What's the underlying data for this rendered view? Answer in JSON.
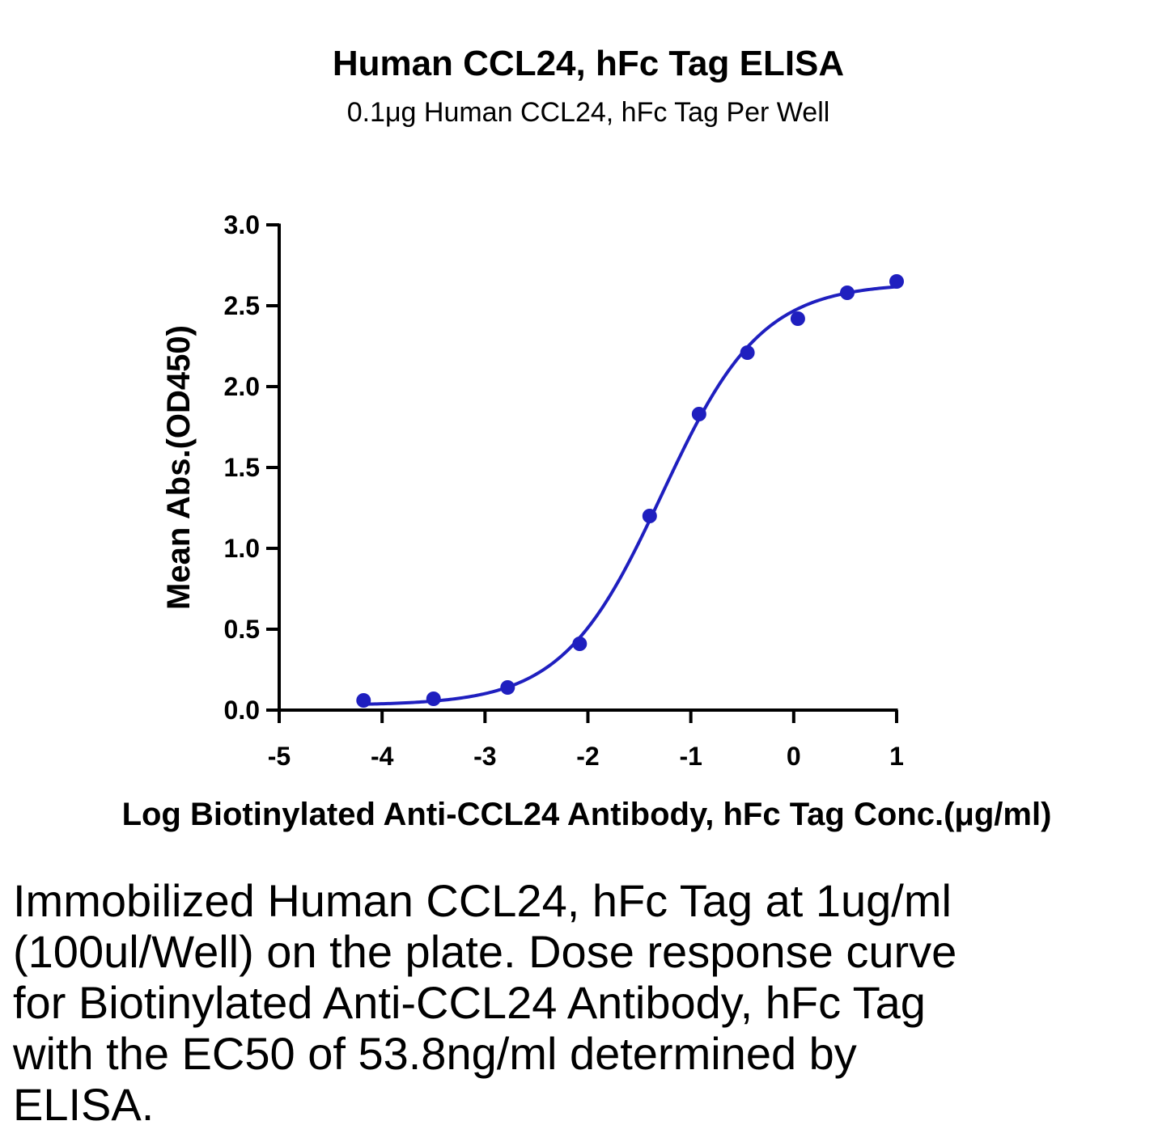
{
  "chart_data": {
    "type": "scatter",
    "title": "Human CCL24, hFc Tag ELISA",
    "subtitle": "0.1μg Human CCL24, hFc Tag Per Well",
    "xlabel": "Log Biotinylated Anti-CCL24 Antibody, hFc Tag Conc.(μg/ml)",
    "ylabel": "Mean Abs.(OD450)",
    "xlim": [
      -5,
      1
    ],
    "ylim": [
      0,
      3
    ],
    "x_ticks": [
      -5,
      -4,
      -3,
      -2,
      -1,
      0,
      1
    ],
    "x_tick_labels": [
      "-5",
      "-4",
      "-3",
      "-2",
      "-1",
      "0",
      "1"
    ],
    "y_ticks": [
      0,
      0.5,
      1,
      1.5,
      2,
      2.5,
      3
    ],
    "y_tick_labels": [
      "0.0",
      "0.5",
      "1.0",
      "1.5",
      "2.0",
      "2.5",
      "3.0"
    ],
    "grid": false,
    "color": "#1f1fbf",
    "series": [
      {
        "x": [
          -4.18,
          -3.5,
          -2.78,
          -2.08,
          -1.4,
          -0.92,
          -0.45,
          0.04,
          0.52,
          1.0
        ],
        "y": [
          0.06,
          0.07,
          0.14,
          0.41,
          1.2,
          1.83,
          2.21,
          2.42,
          2.58,
          2.65
        ],
        "fit_curve": true
      }
    ]
  },
  "caption": "Immobilized Human CCL24, hFc Tag at 1ug/ml (100ul/Well) on the plate. Dose response curve for Biotinylated Anti-CCL24 Antibody, hFc Tag with the EC50 of 53.8ng/ml determined by ELISA."
}
